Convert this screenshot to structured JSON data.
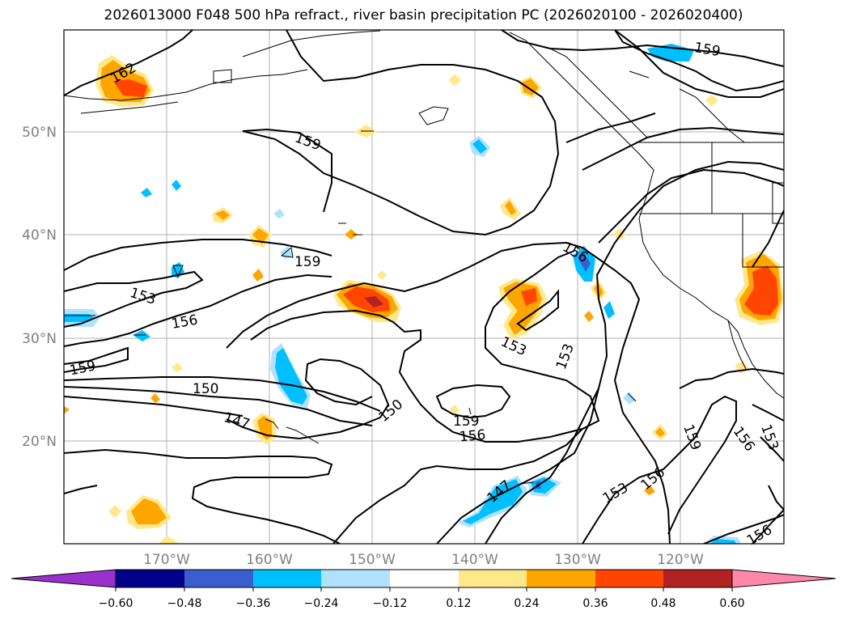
{
  "title": "2026013000 F048 500 hPa refract., river basin precipitation PC (2026020100 - 2026020400)",
  "map": {
    "lon_ticks": [
      "170°W",
      "160°W",
      "150°W",
      "140°W",
      "130°W",
      "120°W"
    ],
    "lat_ticks": [
      "50°N",
      "40°N",
      "30°N",
      "20°N"
    ],
    "contour_labels": [
      "162",
      "159",
      "159",
      "159",
      "153",
      "156",
      "159",
      "150",
      "147",
      "150",
      "159",
      "156",
      "153",
      "153",
      "156",
      "147",
      "153",
      "156",
      "159",
      "156",
      "153",
      "156"
    ],
    "colors": {
      "neg_60": "#9932cc",
      "neg_48": "#00008b",
      "neg_36": "#3a5fcd",
      "neg_24": "#00bfff",
      "neg_12": "#b0e2ff",
      "zero": "#ffffff",
      "pos_12": "#ffe88a",
      "pos_24": "#ffa500",
      "pos_36": "#ff4500",
      "pos_48": "#b22222",
      "pos_60": "#ff88aa"
    }
  },
  "colorbar": {
    "labels": [
      "−0.60",
      "−0.48",
      "−0.36",
      "−0.24",
      "−0.12",
      "0.12",
      "0.24",
      "0.36",
      "0.48",
      "0.60"
    ]
  }
}
